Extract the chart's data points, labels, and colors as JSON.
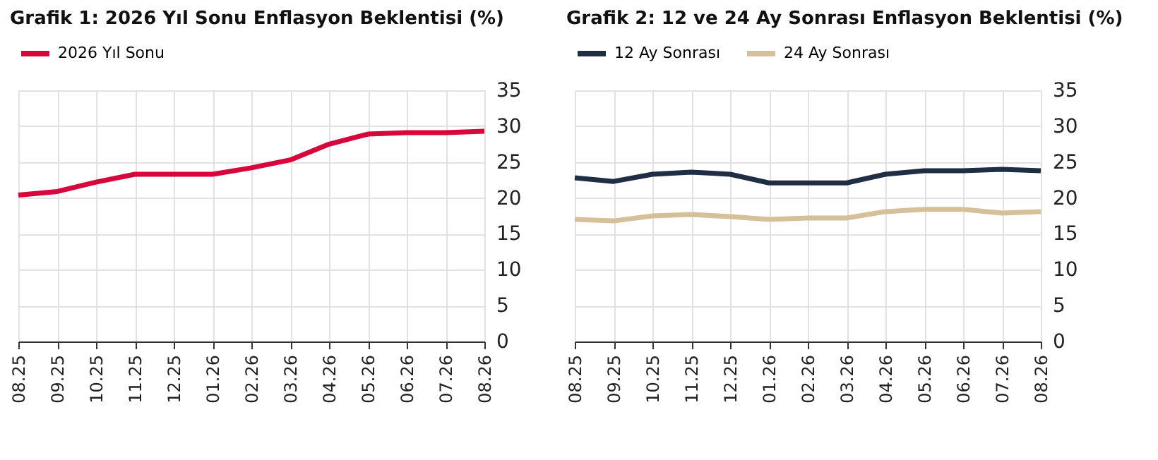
{
  "chart_data": [
    {
      "type": "line",
      "title": "Grafik 1: 2026 Yıl Sonu Enflasyon Beklentisi (%)",
      "categories": [
        "08.25",
        "09.25",
        "10.25",
        "11.25",
        "12.25",
        "01.26",
        "02.26",
        "03.26",
        "04.26",
        "05.26",
        "06.26",
        "07.26",
        "08.26"
      ],
      "series": [
        {
          "name": "2026 Yıl Sonu",
          "color": "#d7063b",
          "values": [
            20.4,
            20.9,
            22.2,
            23.3,
            23.3,
            23.3,
            24.2,
            25.3,
            27.5,
            28.9,
            29.1,
            29.1,
            29.3
          ]
        }
      ],
      "ylim": [
        0,
        35
      ],
      "yticks": [
        0,
        5,
        10,
        15,
        20,
        25,
        30,
        35
      ],
      "grid": true,
      "legend": "top",
      "marker": "none",
      "line_style": "solid"
    },
    {
      "type": "line",
      "title": "Grafik 2: 12 ve 24 Ay Sonrası Enflasyon Beklentisi (%)",
      "categories": [
        "08.25",
        "09.25",
        "10.25",
        "11.25",
        "12.25",
        "01.26",
        "02.26",
        "03.26",
        "04.26",
        "05.26",
        "06.26",
        "07.26",
        "08.26"
      ],
      "series": [
        {
          "name": "12 Ay Sonrası",
          "color": "#1f2d45",
          "values": [
            22.8,
            22.3,
            23.3,
            23.6,
            23.3,
            22.1,
            22.1,
            22.1,
            23.3,
            23.8,
            23.8,
            24.0,
            23.8
          ]
        },
        {
          "name": "24 Ay Sonrası",
          "color": "#d6c09a",
          "values": [
            17.0,
            16.8,
            17.5,
            17.7,
            17.4,
            17.0,
            17.2,
            17.2,
            18.1,
            18.4,
            18.4,
            17.9,
            18.1
          ]
        }
      ],
      "ylim": [
        0,
        35
      ],
      "yticks": [
        0,
        5,
        10,
        15,
        20,
        25,
        30,
        35
      ],
      "grid": true,
      "legend": "top",
      "marker": "none",
      "line_style": "solid"
    }
  ]
}
